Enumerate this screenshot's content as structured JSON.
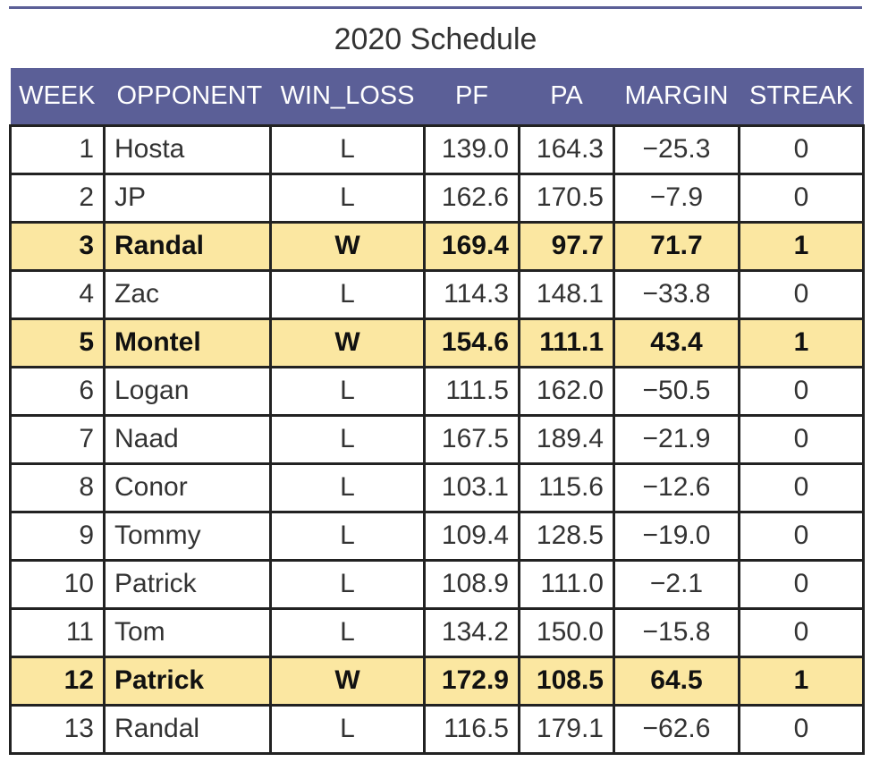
{
  "title": "2020 Schedule",
  "colors": {
    "header_bg": "#5b5f97",
    "header_text": "#ffffff",
    "win_highlight": "#fbe7a1"
  },
  "columns": [
    "WEEK",
    "OPPONENT",
    "WIN_LOSS",
    "PF",
    "PA",
    "MARGIN",
    "STREAK"
  ],
  "chart_data": {
    "type": "table",
    "title": "2020 Schedule",
    "columns": [
      "WEEK",
      "OPPONENT",
      "WIN_LOSS",
      "PF",
      "PA",
      "MARGIN",
      "STREAK"
    ],
    "rows": [
      [
        "1",
        "Hosta",
        "L",
        "139.0",
        "164.3",
        "−25.3",
        "0"
      ],
      [
        "2",
        "JP",
        "L",
        "162.6",
        "170.5",
        "−7.9",
        "0"
      ],
      [
        "3",
        "Randal",
        "W",
        "169.4",
        "97.7",
        "71.7",
        "1"
      ],
      [
        "4",
        "Zac",
        "L",
        "114.3",
        "148.1",
        "−33.8",
        "0"
      ],
      [
        "5",
        "Montel",
        "W",
        "154.6",
        "111.1",
        "43.4",
        "1"
      ],
      [
        "6",
        "Logan",
        "L",
        "111.5",
        "162.0",
        "−50.5",
        "0"
      ],
      [
        "7",
        "Naad",
        "L",
        "167.5",
        "189.4",
        "−21.9",
        "0"
      ],
      [
        "8",
        "Conor",
        "L",
        "103.1",
        "115.6",
        "−12.6",
        "0"
      ],
      [
        "9",
        "Tommy",
        "L",
        "109.4",
        "128.5",
        "−19.0",
        "0"
      ],
      [
        "10",
        "Patrick",
        "L",
        "108.9",
        "111.0",
        "−2.1",
        "0"
      ],
      [
        "11",
        "Tom",
        "L",
        "134.2",
        "150.0",
        "−15.8",
        "0"
      ],
      [
        "12",
        "Patrick",
        "W",
        "172.9",
        "108.5",
        "64.5",
        "1"
      ],
      [
        "13",
        "Randal",
        "L",
        "116.5",
        "179.1",
        "−62.6",
        "0"
      ]
    ],
    "highlighted_rows": [
      "3",
      "5",
      "12"
    ]
  }
}
